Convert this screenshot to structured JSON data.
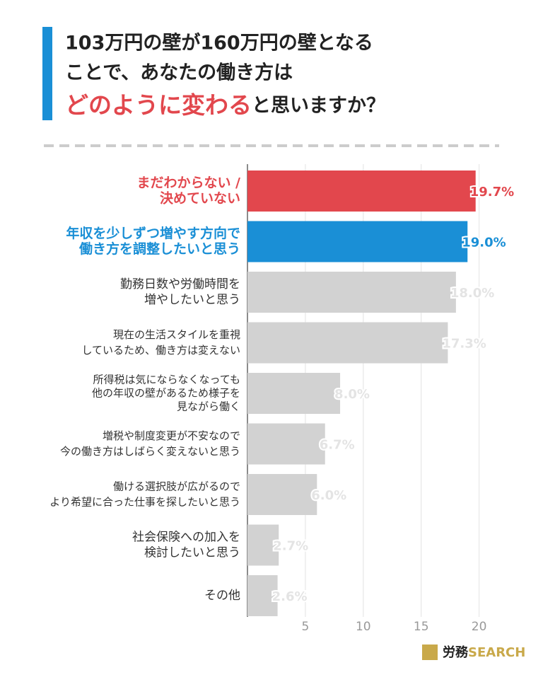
{
  "chart_data": {
    "type": "barh",
    "title": [
      "103万円の壁が160万円の壁となる",
      "ことで、あなたの働き方は",
      "どのように変わる",
      "と思いますか？"
    ],
    "categories": [
      [
        "まだわからない /",
        "決めていない"
      ],
      [
        "年収を少しずつ増やす方向で",
        "働き方を調整したいと思う"
      ],
      [
        "勤務日数や労働時間を",
        "増やしたいと思う"
      ],
      [
        "現在の生活スタイルを重視",
        "しているため、働き方は変えない"
      ],
      [
        "所得税は気にならなくなっても",
        "他の年収の壁があるため様子を",
        "見ながら働く"
      ],
      [
        "増税や制度変更が不安なので",
        "今の働き方はしばらく変えないと思う"
      ],
      [
        "働ける選択肢が広がるので",
        "より希望に合った仕事を探したいと思う"
      ],
      [
        "社会保険への加入を",
        "検討したいと思う"
      ],
      [
        "その他"
      ]
    ],
    "values": [
      19.7,
      19.0,
      18.0,
      17.3,
      8.0,
      6.7,
      6.0,
      2.7,
      2.6
    ],
    "value_labels": [
      "19.7%",
      "19.0%",
      "18.0%",
      "17.3%",
      "8.0%",
      "6.7%",
      "6.0%",
      "2.7%",
      "2.6%"
    ],
    "colors": [
      "#e2474d",
      "#1a8fd6",
      "#d2d2d2",
      "#d2d2d2",
      "#d2d2d2",
      "#d2d2d2",
      "#d2d2d2",
      "#d2d2d2",
      "#d2d2d2"
    ],
    "label_colors": [
      "#e2474d",
      "#1a8fd6",
      "#333333",
      "#333333",
      "#333333",
      "#333333",
      "#333333",
      "#333333",
      "#333333"
    ],
    "xlim": [
      0,
      21
    ],
    "xticks": [
      5,
      10,
      15,
      20
    ],
    "grid": true,
    "brand": [
      "労務",
      "SEARCH"
    ]
  }
}
